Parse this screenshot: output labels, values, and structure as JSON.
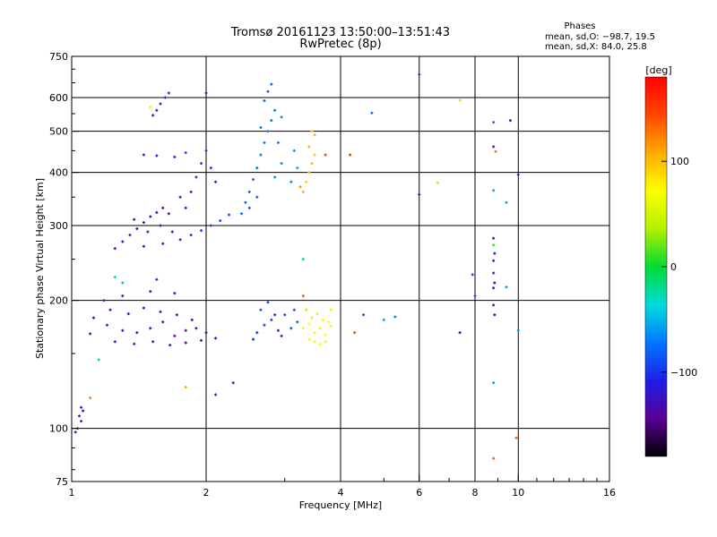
{
  "header": {
    "title_line1": "Tromsø 20161123 13:50:00–13:51:43",
    "title_line2": "RwPretec (8p)"
  },
  "stats": {
    "heading": "Phases",
    "line_o": "mean, sd,O: −98.7, 19.5",
    "line_x": "mean, sd,X:  84.0, 25.8"
  },
  "colorbar": {
    "unit_label": "[deg]",
    "ticks": [
      {
        "value": 100,
        "label": "100"
      },
      {
        "value": 0,
        "label": "0"
      },
      {
        "value": -100,
        "label": "−100"
      }
    ],
    "min": -180,
    "max": 180,
    "stops": [
      "#000000",
      "#5a0096",
      "#1e1ee6",
      "#0078ff",
      "#00dcdc",
      "#00dc32",
      "#b4f000",
      "#ffff00",
      "#ffaa00",
      "#ff4600",
      "#ff0000"
    ]
  },
  "chart_data": {
    "type": "scatter",
    "xlabel": "Frequency [MHz]",
    "ylabel": "Stationary phase Virtual Height [km]",
    "xscale": "log",
    "yscale": "log",
    "xlim": [
      1,
      16
    ],
    "ylim": [
      75,
      750
    ],
    "xticks": [
      {
        "value": 1,
        "label": "1"
      },
      {
        "value": 2,
        "label": "2"
      },
      {
        "value": 4,
        "label": "4"
      },
      {
        "value": 6,
        "label": "6"
      },
      {
        "value": 8,
        "label": "8"
      },
      {
        "value": 10,
        "label": "10"
      },
      {
        "value": 16,
        "label": "16"
      }
    ],
    "yticks": [
      {
        "value": 75,
        "label": "75"
      },
      {
        "value": 100,
        "label": "100"
      },
      {
        "value": 200,
        "label": "200"
      },
      {
        "value": 300,
        "label": "300"
      },
      {
        "value": 400,
        "label": "400"
      },
      {
        "value": 500,
        "label": "500"
      },
      {
        "value": 600,
        "label": "600"
      },
      {
        "value": 750,
        "label": "750"
      }
    ],
    "vgrid": [
      2,
      4,
      6,
      8,
      10
    ],
    "hgrid": [
      100,
      200,
      300,
      400,
      500,
      600
    ],
    "grid": true,
    "color_by": "phase (deg)",
    "points": [
      {
        "x": 1.03,
        "y": 100,
        "p": -110
      },
      {
        "x": 1.05,
        "y": 104,
        "p": -110
      },
      {
        "x": 1.04,
        "y": 107,
        "p": -105
      },
      {
        "x": 1.06,
        "y": 110,
        "p": -115
      },
      {
        "x": 1.02,
        "y": 98,
        "p": -108
      },
      {
        "x": 1.05,
        "y": 112,
        "p": -112
      },
      {
        "x": 1.1,
        "y": 118,
        "p": 120
      },
      {
        "x": 1.15,
        "y": 145,
        "p": -20
      },
      {
        "x": 1.1,
        "y": 167,
        "p": -110
      },
      {
        "x": 1.2,
        "y": 175,
        "p": -115
      },
      {
        "x": 1.3,
        "y": 170,
        "p": -125
      },
      {
        "x": 1.4,
        "y": 168,
        "p": -120
      },
      {
        "x": 1.5,
        "y": 172,
        "p": -130
      },
      {
        "x": 1.6,
        "y": 178,
        "p": -135
      },
      {
        "x": 1.7,
        "y": 165,
        "p": -130
      },
      {
        "x": 1.8,
        "y": 170,
        "p": -140
      },
      {
        "x": 1.9,
        "y": 172,
        "p": -135
      },
      {
        "x": 2.0,
        "y": 168,
        "p": -140
      },
      {
        "x": 2.1,
        "y": 163,
        "p": -120
      },
      {
        "x": 1.12,
        "y": 182,
        "p": -112
      },
      {
        "x": 1.22,
        "y": 190,
        "p": -118
      },
      {
        "x": 1.34,
        "y": 186,
        "p": -122
      },
      {
        "x": 1.45,
        "y": 192,
        "p": -126
      },
      {
        "x": 1.58,
        "y": 188,
        "p": -132
      },
      {
        "x": 1.72,
        "y": 185,
        "p": -128
      },
      {
        "x": 1.86,
        "y": 180,
        "p": -138
      },
      {
        "x": 1.25,
        "y": 160,
        "p": -124
      },
      {
        "x": 1.38,
        "y": 158,
        "p": -128
      },
      {
        "x": 1.52,
        "y": 160,
        "p": -134
      },
      {
        "x": 1.66,
        "y": 157,
        "p": -136
      },
      {
        "x": 1.8,
        "y": 159,
        "p": -142
      },
      {
        "x": 1.95,
        "y": 161,
        "p": -138
      },
      {
        "x": 1.18,
        "y": 200,
        "p": -110
      },
      {
        "x": 1.3,
        "y": 205,
        "p": -114
      },
      {
        "x": 1.5,
        "y": 210,
        "p": -120
      },
      {
        "x": 1.7,
        "y": 208,
        "p": -124
      },
      {
        "x": 1.3,
        "y": 220,
        "p": -10
      },
      {
        "x": 1.25,
        "y": 227,
        "p": -15
      },
      {
        "x": 1.55,
        "y": 224,
        "p": -105
      },
      {
        "x": 2.6,
        "y": 168,
        "p": -100
      },
      {
        "x": 2.7,
        "y": 175,
        "p": -95
      },
      {
        "x": 2.8,
        "y": 180,
        "p": -98
      },
      {
        "x": 2.9,
        "y": 170,
        "p": -105
      },
      {
        "x": 2.65,
        "y": 190,
        "p": -92
      },
      {
        "x": 2.75,
        "y": 198,
        "p": -96
      },
      {
        "x": 2.85,
        "y": 185,
        "p": -100
      },
      {
        "x": 3.1,
        "y": 172,
        "p": -90
      },
      {
        "x": 3.2,
        "y": 178,
        "p": -85
      },
      {
        "x": 3.15,
        "y": 190,
        "p": -88
      },
      {
        "x": 3.0,
        "y": 185,
        "p": -92
      },
      {
        "x": 2.55,
        "y": 162,
        "p": -102
      },
      {
        "x": 2.95,
        "y": 165,
        "p": -110
      },
      {
        "x": 3.3,
        "y": 172,
        "p": 60
      },
      {
        "x": 3.4,
        "y": 176,
        "p": 70
      },
      {
        "x": 3.5,
        "y": 168,
        "p": 75
      },
      {
        "x": 3.6,
        "y": 172,
        "p": 80
      },
      {
        "x": 3.7,
        "y": 166,
        "p": 72
      },
      {
        "x": 3.8,
        "y": 174,
        "p": 78
      },
      {
        "x": 3.45,
        "y": 182,
        "p": 85
      },
      {
        "x": 3.55,
        "y": 186,
        "p": 82
      },
      {
        "x": 3.65,
        "y": 180,
        "p": 76
      },
      {
        "x": 3.75,
        "y": 178,
        "p": 70
      },
      {
        "x": 3.5,
        "y": 160,
        "p": 68
      },
      {
        "x": 3.6,
        "y": 158,
        "p": 74
      },
      {
        "x": 3.4,
        "y": 162,
        "p": 64
      },
      {
        "x": 3.7,
        "y": 160,
        "p": 80
      },
      {
        "x": 3.35,
        "y": 190,
        "p": 88
      },
      {
        "x": 3.8,
        "y": 190,
        "p": 60
      },
      {
        "x": 1.25,
        "y": 265,
        "p": -118
      },
      {
        "x": 1.3,
        "y": 275,
        "p": -125
      },
      {
        "x": 1.35,
        "y": 285,
        "p": -130
      },
      {
        "x": 1.4,
        "y": 295,
        "p": -135
      },
      {
        "x": 1.45,
        "y": 305,
        "p": -138
      },
      {
        "x": 1.5,
        "y": 315,
        "p": -140
      },
      {
        "x": 1.55,
        "y": 322,
        "p": -142
      },
      {
        "x": 1.6,
        "y": 330,
        "p": -145
      },
      {
        "x": 1.65,
        "y": 320,
        "p": -140
      },
      {
        "x": 1.38,
        "y": 310,
        "p": -132
      },
      {
        "x": 1.48,
        "y": 290,
        "p": -128
      },
      {
        "x": 1.58,
        "y": 300,
        "p": -136
      },
      {
        "x": 1.68,
        "y": 290,
        "p": -130
      },
      {
        "x": 1.75,
        "y": 278,
        "p": -110
      },
      {
        "x": 1.85,
        "y": 285,
        "p": -105
      },
      {
        "x": 1.95,
        "y": 292,
        "p": -100
      },
      {
        "x": 2.05,
        "y": 300,
        "p": -96
      },
      {
        "x": 2.15,
        "y": 308,
        "p": -92
      },
      {
        "x": 2.25,
        "y": 318,
        "p": -88
      },
      {
        "x": 1.45,
        "y": 268,
        "p": -120
      },
      {
        "x": 1.6,
        "y": 272,
        "p": -115
      },
      {
        "x": 1.8,
        "y": 330,
        "p": -112
      },
      {
        "x": 1.85,
        "y": 360,
        "p": -108
      },
      {
        "x": 1.9,
        "y": 390,
        "p": -104
      },
      {
        "x": 1.95,
        "y": 420,
        "p": -100
      },
      {
        "x": 2.0,
        "y": 450,
        "p": -98
      },
      {
        "x": 1.75,
        "y": 350,
        "p": -115
      },
      {
        "x": 2.1,
        "y": 380,
        "p": -104
      },
      {
        "x": 2.05,
        "y": 410,
        "p": -102
      },
      {
        "x": 1.45,
        "y": 440,
        "p": -110
      },
      {
        "x": 1.55,
        "y": 438,
        "p": -108
      },
      {
        "x": 1.7,
        "y": 435,
        "p": -105
      },
      {
        "x": 1.8,
        "y": 445,
        "p": -95
      },
      {
        "x": 1.52,
        "y": 545,
        "p": -112
      },
      {
        "x": 1.55,
        "y": 560,
        "p": -108
      },
      {
        "x": 1.58,
        "y": 580,
        "p": -110
      },
      {
        "x": 1.62,
        "y": 600,
        "p": -106
      },
      {
        "x": 1.65,
        "y": 615,
        "p": -104
      },
      {
        "x": 1.5,
        "y": 570,
        "p": 60
      },
      {
        "x": 2.0,
        "y": 615,
        "p": -130
      },
      {
        "x": 2.4,
        "y": 320,
        "p": -88
      },
      {
        "x": 2.45,
        "y": 340,
        "p": -85
      },
      {
        "x": 2.5,
        "y": 360,
        "p": -82
      },
      {
        "x": 2.55,
        "y": 385,
        "p": -80
      },
      {
        "x": 2.6,
        "y": 410,
        "p": -78
      },
      {
        "x": 2.65,
        "y": 440,
        "p": -76
      },
      {
        "x": 2.7,
        "y": 470,
        "p": -74
      },
      {
        "x": 2.75,
        "y": 500,
        "p": -72
      },
      {
        "x": 2.8,
        "y": 530,
        "p": -75
      },
      {
        "x": 2.85,
        "y": 560,
        "p": -78
      },
      {
        "x": 2.7,
        "y": 590,
        "p": -80
      },
      {
        "x": 2.75,
        "y": 620,
        "p": -82
      },
      {
        "x": 2.8,
        "y": 645,
        "p": -84
      },
      {
        "x": 2.9,
        "y": 470,
        "p": -70
      },
      {
        "x": 2.95,
        "y": 420,
        "p": -68
      },
      {
        "x": 2.6,
        "y": 350,
        "p": -86
      },
      {
        "x": 2.5,
        "y": 330,
        "p": -90
      },
      {
        "x": 2.85,
        "y": 390,
        "p": -72
      },
      {
        "x": 2.95,
        "y": 540,
        "p": -66
      },
      {
        "x": 2.65,
        "y": 510,
        "p": -74
      },
      {
        "x": 3.1,
        "y": 380,
        "p": -65
      },
      {
        "x": 3.2,
        "y": 410,
        "p": -60
      },
      {
        "x": 3.15,
        "y": 450,
        "p": -62
      },
      {
        "x": 3.35,
        "y": 380,
        "p": 95
      },
      {
        "x": 3.4,
        "y": 400,
        "p": 100
      },
      {
        "x": 3.45,
        "y": 420,
        "p": 102
      },
      {
        "x": 3.5,
        "y": 440,
        "p": 98
      },
      {
        "x": 3.4,
        "y": 460,
        "p": 104
      },
      {
        "x": 3.5,
        "y": 490,
        "p": 106
      },
      {
        "x": 3.3,
        "y": 360,
        "p": 110
      },
      {
        "x": 3.25,
        "y": 370,
        "p": 115
      },
      {
        "x": 3.45,
        "y": 500,
        "p": 92
      },
      {
        "x": 3.7,
        "y": 440,
        "p": 150
      },
      {
        "x": 3.3,
        "y": 250,
        "p": -20
      },
      {
        "x": 3.3,
        "y": 205,
        "p": 140
      },
      {
        "x": 2.1,
        "y": 120,
        "p": -110
      },
      {
        "x": 2.3,
        "y": 128,
        "p": -120
      },
      {
        "x": 1.8,
        "y": 125,
        "p": 110
      },
      {
        "x": 4.2,
        "y": 440,
        "p": 160
      },
      {
        "x": 4.5,
        "y": 185,
        "p": -90
      },
      {
        "x": 4.7,
        "y": 552,
        "p": -80
      },
      {
        "x": 4.3,
        "y": 168,
        "p": 150
      },
      {
        "x": 5.0,
        "y": 180,
        "p": -60
      },
      {
        "x": 5.3,
        "y": 183,
        "p": -70
      },
      {
        "x": 6.0,
        "y": 680,
        "p": -100
      },
      {
        "x": 6.0,
        "y": 355,
        "p": -110
      },
      {
        "x": 6.6,
        "y": 378,
        "p": 40
      },
      {
        "x": 7.4,
        "y": 592,
        "p": 40
      },
      {
        "x": 7.4,
        "y": 168,
        "p": -140
      },
      {
        "x": 7.9,
        "y": 230,
        "p": -90
      },
      {
        "x": 8.0,
        "y": 205,
        "p": -95
      },
      {
        "x": 8.8,
        "y": 525,
        "p": -80
      },
      {
        "x": 8.8,
        "y": 460,
        "p": -110
      },
      {
        "x": 8.9,
        "y": 448,
        "p": 130
      },
      {
        "x": 8.8,
        "y": 363,
        "p": -60
      },
      {
        "x": 8.8,
        "y": 280,
        "p": -120
      },
      {
        "x": 8.8,
        "y": 270,
        "p": 10
      },
      {
        "x": 8.85,
        "y": 258,
        "p": -110
      },
      {
        "x": 8.8,
        "y": 248,
        "p": -130
      },
      {
        "x": 8.8,
        "y": 232,
        "p": -115
      },
      {
        "x": 8.85,
        "y": 220,
        "p": -125
      },
      {
        "x": 8.8,
        "y": 214,
        "p": -110
      },
      {
        "x": 8.8,
        "y": 195,
        "p": -120
      },
      {
        "x": 8.85,
        "y": 185,
        "p": -118
      },
      {
        "x": 8.8,
        "y": 128,
        "p": -60
      },
      {
        "x": 8.8,
        "y": 85,
        "p": 140
      },
      {
        "x": 9.4,
        "y": 340,
        "p": -60
      },
      {
        "x": 9.6,
        "y": 530,
        "p": -130
      },
      {
        "x": 10.0,
        "y": 395,
        "p": -110
      },
      {
        "x": 9.4,
        "y": 215,
        "p": -60
      },
      {
        "x": 10.0,
        "y": 170,
        "p": -70
      },
      {
        "x": 9.9,
        "y": 95,
        "p": 140
      }
    ]
  }
}
